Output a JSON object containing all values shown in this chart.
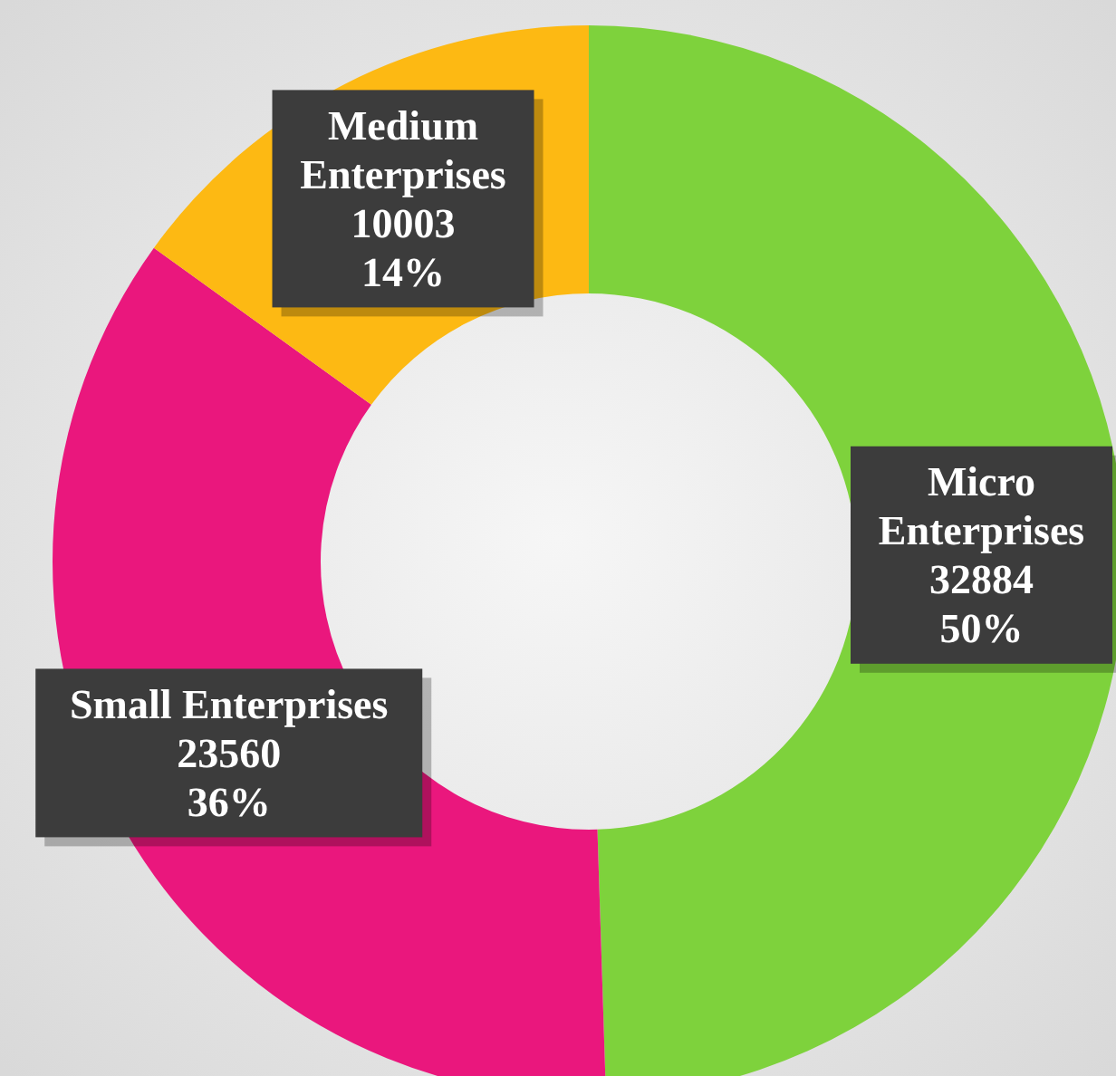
{
  "chart_data": {
    "type": "donut",
    "categories": [
      "Micro\nEnterprises",
      "Small Enterprises",
      "Medium\nEnterprises"
    ],
    "values": [
      32884,
      23560,
      10003
    ],
    "colors": [
      "#7ed23c",
      "#ea177d",
      "#fdb913"
    ],
    "value_labels": [
      "32884\n50%",
      "23560\n36%",
      "10003\n14%"
    ]
  }
}
